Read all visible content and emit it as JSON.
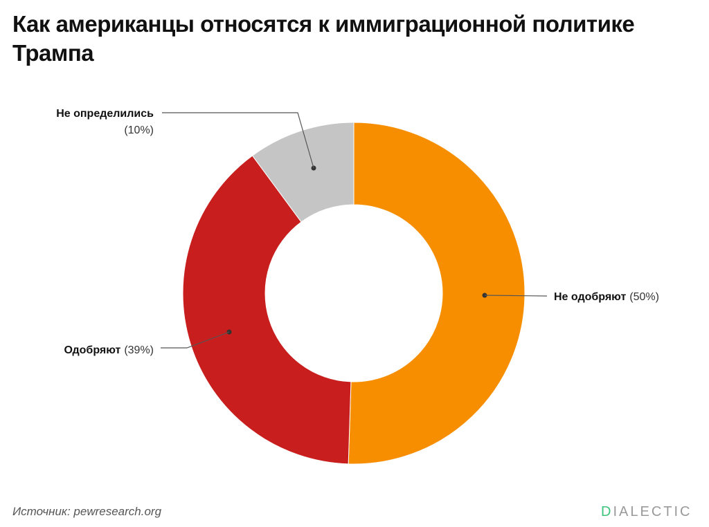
{
  "title": "Как американцы относятся к иммиграционной политике Трампа",
  "source": "Источник: pewresearch.org",
  "logo": {
    "first": "D",
    "rest": "IALECTIC",
    "first_color": "#3cc47c"
  },
  "chart_data": {
    "type": "pie",
    "donut": true,
    "title": "Как американцы относятся к иммиграционной политике Трампа",
    "slices": [
      {
        "label": "Не одобряют",
        "value": 50,
        "pct_label": "(50%)",
        "color": "#f78e00"
      },
      {
        "label": "Одобряют",
        "value": 39,
        "pct_label": "(39%)",
        "color": "#c81e1e"
      },
      {
        "label": "Не определились",
        "value": 10,
        "pct_label": "(10%)",
        "color": "#c5c5c5"
      }
    ],
    "start": "top",
    "direction": "clockwise",
    "legend": "none"
  }
}
